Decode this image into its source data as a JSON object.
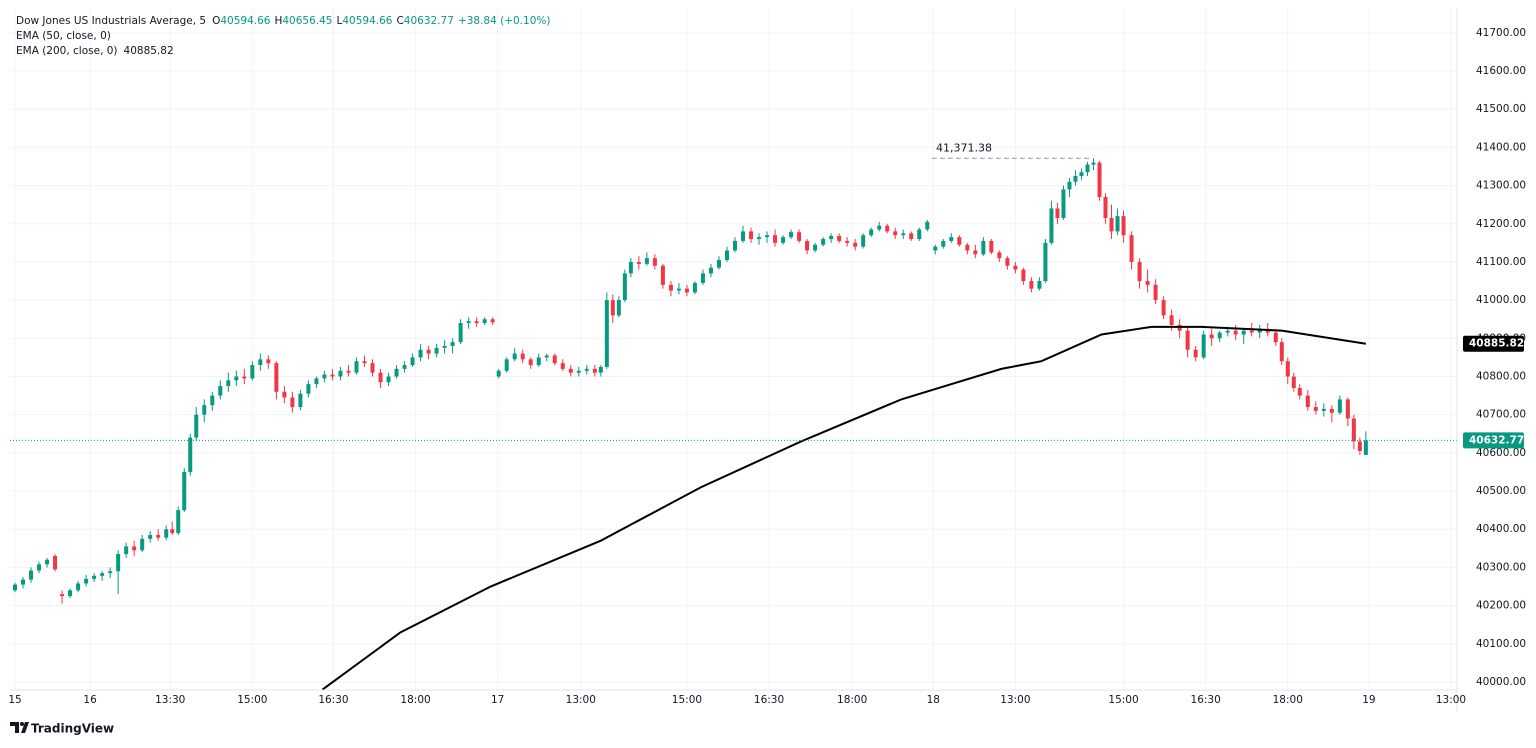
{
  "chart_data": {
    "type": "candlestick",
    "title": "Dow Jones US Industrials Average, 5",
    "ohlc_header": [
      {
        "label": "O",
        "value": "40594.66"
      },
      {
        "label": "H",
        "value": "40656.45"
      },
      {
        "label": "L",
        "value": "40594.66"
      },
      {
        "label": "C",
        "value": "40632.77"
      }
    ],
    "change": "+38.84 (+0.10%)",
    "up_color": "#089981",
    "down_color": "#f23645",
    "xlim": [
      10,
      1455
    ],
    "ylim": [
      39979,
      41765
    ],
    "xticks": [
      {
        "value": 15,
        "label": "15"
      },
      {
        "value": 90,
        "label": "16"
      },
      {
        "value": 170,
        "label": "13:30"
      },
      {
        "value": 252,
        "label": "15:00"
      },
      {
        "value": 333,
        "label": "16:30"
      },
      {
        "value": 415,
        "label": "18:00"
      },
      {
        "value": 497,
        "label": "17"
      },
      {
        "value": 580,
        "label": "13:00"
      },
      {
        "value": 686,
        "label": "15:00"
      },
      {
        "value": 768,
        "label": "16:30"
      },
      {
        "value": 851,
        "label": "18:00"
      },
      {
        "value": 932,
        "label": "18"
      },
      {
        "value": 1014,
        "label": "13:00"
      },
      {
        "value": 1122,
        "label": "15:00"
      },
      {
        "value": 1204,
        "label": "16:30"
      },
      {
        "value": 1286,
        "label": "18:00"
      },
      {
        "value": 1367,
        "label": "19"
      },
      {
        "value": 1449,
        "label": "13:00"
      }
    ],
    "yticks": [
      {
        "value": 40000,
        "label": "40000.00"
      },
      {
        "value": 40100,
        "label": "40100.00"
      },
      {
        "value": 40200,
        "label": "40200.00"
      },
      {
        "value": 40300,
        "label": "40300.00"
      },
      {
        "value": 40400,
        "label": "40400.00"
      },
      {
        "value": 40500,
        "label": "40500.00"
      },
      {
        "value": 40600,
        "label": "40600.00"
      },
      {
        "value": 40700,
        "label": "40700.00"
      },
      {
        "value": 40800,
        "label": "40800.00"
      },
      {
        "value": 40900,
        "label": "40900.00"
      },
      {
        "value": 41000,
        "label": "41000.00"
      },
      {
        "value": 41100,
        "label": "41100.00"
      },
      {
        "value": 41200,
        "label": "41200.00"
      },
      {
        "value": 41300,
        "label": "41300.00"
      },
      {
        "value": 41400,
        "label": "41400.00"
      },
      {
        "value": 41500,
        "label": "41500.00"
      },
      {
        "value": 41600,
        "label": "41600.00"
      },
      {
        "value": 41700,
        "label": "41700.00"
      }
    ],
    "grid": true,
    "candles": [
      [
        15,
        40240,
        40260,
        40235,
        40255
      ],
      [
        23,
        40255,
        40275,
        40245,
        40268
      ],
      [
        31,
        40268,
        40300,
        40260,
        40292
      ],
      [
        39,
        40292,
        40315,
        40285,
        40308
      ],
      [
        47,
        40308,
        40325,
        40300,
        40320
      ],
      [
        55,
        40330,
        40335,
        40290,
        40295
      ],
      [
        62,
        40230,
        40240,
        40205,
        40225
      ],
      [
        70,
        40225,
        40245,
        40220,
        40240
      ],
      [
        78,
        40240,
        40265,
        40235,
        40258
      ],
      [
        86,
        40258,
        40280,
        40250,
        40270
      ],
      [
        94,
        40270,
        40285,
        40262,
        40278
      ],
      [
        102,
        40278,
        40290,
        40265,
        40285
      ],
      [
        110,
        40285,
        40300,
        40272,
        40290
      ],
      [
        118,
        40290,
        40345,
        40230,
        40335
      ],
      [
        126,
        40335,
        40365,
        40325,
        40355
      ],
      [
        134,
        40355,
        40370,
        40330,
        40345
      ],
      [
        142,
        40345,
        40385,
        40340,
        40375
      ],
      [
        150,
        40375,
        40395,
        40365,
        40385
      ],
      [
        158,
        40385,
        40400,
        40370,
        40378
      ],
      [
        166,
        40378,
        40410,
        40372,
        40400
      ],
      [
        172,
        40400,
        40420,
        40385,
        40390
      ],
      [
        178,
        40390,
        40460,
        40385,
        40450
      ],
      [
        184,
        40450,
        40560,
        40445,
        40550
      ],
      [
        190,
        40550,
        40650,
        40540,
        40640
      ],
      [
        196,
        40640,
        40720,
        40630,
        40700
      ],
      [
        204,
        40700,
        40740,
        40680,
        40725
      ],
      [
        212,
        40725,
        40760,
        40710,
        40750
      ],
      [
        220,
        40750,
        40790,
        40740,
        40775
      ],
      [
        228,
        40775,
        40810,
        40760,
        40790
      ],
      [
        236,
        40790,
        40815,
        40775,
        40800
      ],
      [
        244,
        40800,
        40820,
        40780,
        40795
      ],
      [
        252,
        40795,
        40840,
        40790,
        40830
      ],
      [
        260,
        40830,
        40860,
        40815,
        40845
      ],
      [
        268,
        40845,
        40855,
        40820,
        40835
      ],
      [
        276,
        40835,
        40840,
        40740,
        40760
      ],
      [
        284,
        40760,
        40775,
        40730,
        40745
      ],
      [
        292,
        40745,
        40760,
        40705,
        40720
      ],
      [
        300,
        40720,
        40765,
        40712,
        40755
      ],
      [
        308,
        40755,
        40790,
        40745,
        40780
      ],
      [
        316,
        40780,
        40800,
        40770,
        40795
      ],
      [
        324,
        40795,
        40815,
        40785,
        40805
      ],
      [
        332,
        40805,
        40820,
        40790,
        40800
      ],
      [
        340,
        40800,
        40825,
        40790,
        40815
      ],
      [
        348,
        40815,
        40830,
        40800,
        40810
      ],
      [
        356,
        40810,
        40850,
        40805,
        40840
      ],
      [
        364,
        40840,
        40855,
        40825,
        40835
      ],
      [
        372,
        40835,
        40845,
        40800,
        40810
      ],
      [
        380,
        40810,
        40820,
        40770,
        40785
      ],
      [
        388,
        40785,
        40810,
        40775,
        40800
      ],
      [
        396,
        40800,
        40830,
        40795,
        40820
      ],
      [
        404,
        40820,
        40840,
        40810,
        40830
      ],
      [
        412,
        40830,
        40860,
        40825,
        40850
      ],
      [
        420,
        40850,
        40885,
        40840,
        40870
      ],
      [
        428,
        40870,
        40880,
        40845,
        40860
      ],
      [
        436,
        40860,
        40885,
        40850,
        40875
      ],
      [
        444,
        40875,
        40895,
        40860,
        40880
      ],
      [
        452,
        40880,
        40900,
        40860,
        40890
      ],
      [
        460,
        40890,
        40950,
        40885,
        40940
      ],
      [
        468,
        40940,
        40955,
        40925,
        40945
      ],
      [
        476,
        40945,
        40955,
        40930,
        40940
      ],
      [
        484,
        40940,
        40955,
        40935,
        40950
      ],
      [
        492,
        40950,
        40955,
        40935,
        40942
      ],
      [
        498,
        40800,
        40820,
        40795,
        40815
      ],
      [
        506,
        40815,
        40850,
        40810,
        40845
      ],
      [
        514,
        40845,
        40875,
        40840,
        40860
      ],
      [
        522,
        40860,
        40870,
        40835,
        40845
      ],
      [
        530,
        40845,
        40850,
        40820,
        40830
      ],
      [
        538,
        40830,
        40860,
        40825,
        40850
      ],
      [
        546,
        40850,
        40860,
        40840,
        40855
      ],
      [
        554,
        40855,
        40860,
        40830,
        40835
      ],
      [
        562,
        40835,
        40845,
        40815,
        40820
      ],
      [
        570,
        40820,
        40830,
        40800,
        40810
      ],
      [
        578,
        40810,
        40825,
        40800,
        40815
      ],
      [
        586,
        40815,
        40830,
        40805,
        40820
      ],
      [
        594,
        40820,
        40830,
        40800,
        40810
      ],
      [
        600,
        40810,
        40830,
        40800,
        40825
      ],
      [
        606,
        40825,
        41020,
        40820,
        41000
      ],
      [
        612,
        41000,
        41015,
        40940,
        40960
      ],
      [
        618,
        40960,
        41010,
        40955,
        41000
      ],
      [
        624,
        41000,
        41080,
        40995,
        41070
      ],
      [
        630,
        41070,
        41110,
        41060,
        41100
      ],
      [
        638,
        41100,
        41115,
        41080,
        41095
      ],
      [
        646,
        41095,
        41125,
        41090,
        41110
      ],
      [
        654,
        41110,
        41120,
        41080,
        41090
      ],
      [
        662,
        41090,
        41095,
        41030,
        41040
      ],
      [
        670,
        41040,
        41050,
        41010,
        41025
      ],
      [
        678,
        41025,
        41045,
        41015,
        41030
      ],
      [
        686,
        41030,
        41040,
        41010,
        41020
      ],
      [
        694,
        41020,
        41050,
        41015,
        41045
      ],
      [
        702,
        41045,
        41080,
        41040,
        41070
      ],
      [
        710,
        41070,
        41095,
        41060,
        41085
      ],
      [
        718,
        41085,
        41115,
        41080,
        41105
      ],
      [
        726,
        41105,
        41140,
        41100,
        41130
      ],
      [
        734,
        41130,
        41165,
        41125,
        41155
      ],
      [
        742,
        41155,
        41195,
        41150,
        41180
      ],
      [
        750,
        41180,
        41190,
        41150,
        41160
      ],
      [
        758,
        41160,
        41175,
        41145,
        41165
      ],
      [
        766,
        41165,
        41180,
        41150,
        41170
      ],
      [
        774,
        41170,
        41185,
        41140,
        41150
      ],
      [
        782,
        41150,
        41170,
        41145,
        41165
      ],
      [
        790,
        41165,
        41185,
        41160,
        41178
      ],
      [
        798,
        41178,
        41185,
        41150,
        41155
      ],
      [
        806,
        41155,
        41160,
        41120,
        41130
      ],
      [
        814,
        41130,
        41150,
        41125,
        41145
      ],
      [
        822,
        41145,
        41165,
        41140,
        41160
      ],
      [
        830,
        41160,
        41175,
        41150,
        41168
      ],
      [
        838,
        41168,
        41175,
        41150,
        41155
      ],
      [
        846,
        41155,
        41165,
        41140,
        41150
      ],
      [
        854,
        41150,
        41160,
        41130,
        41140
      ],
      [
        862,
        41140,
        41175,
        41135,
        41170
      ],
      [
        870,
        41170,
        41190,
        41165,
        41185
      ],
      [
        878,
        41185,
        41205,
        41180,
        41195
      ],
      [
        886,
        41195,
        41200,
        41175,
        41180
      ],
      [
        894,
        41180,
        41190,
        41160,
        41170
      ],
      [
        902,
        41170,
        41185,
        41160,
        41175
      ],
      [
        910,
        41175,
        41180,
        41155,
        41160
      ],
      [
        918,
        41160,
        41190,
        41155,
        41185
      ],
      [
        926,
        41185,
        41210,
        41180,
        41205
      ],
      [
        934,
        41130,
        41145,
        41120,
        41140
      ],
      [
        942,
        41140,
        41160,
        41135,
        41155
      ],
      [
        950,
        41155,
        41175,
        41150,
        41165
      ],
      [
        958,
        41165,
        41170,
        41140,
        41145
      ],
      [
        966,
        41145,
        41150,
        41120,
        41130
      ],
      [
        974,
        41130,
        41145,
        41110,
        41120
      ],
      [
        982,
        41120,
        41165,
        41115,
        41155
      ],
      [
        990,
        41155,
        41160,
        41120,
        41125
      ],
      [
        998,
        41125,
        41130,
        41100,
        41110
      ],
      [
        1006,
        41110,
        41115,
        41080,
        41090
      ],
      [
        1014,
        41090,
        41100,
        41070,
        41080
      ],
      [
        1022,
        41080,
        41085,
        41040,
        41050
      ],
      [
        1030,
        41050,
        41060,
        41020,
        41030
      ],
      [
        1038,
        41030,
        41060,
        41025,
        41050
      ],
      [
        1044,
        41050,
        41160,
        41045,
        41150
      ],
      [
        1050,
        41150,
        41260,
        41145,
        41240
      ],
      [
        1056,
        41240,
        41255,
        41200,
        41215
      ],
      [
        1062,
        41215,
        41300,
        41210,
        41290
      ],
      [
        1068,
        41290,
        41320,
        41270,
        41310
      ],
      [
        1074,
        41310,
        41340,
        41300,
        41325
      ],
      [
        1080,
        41325,
        41345,
        41315,
        41335
      ],
      [
        1086,
        41335,
        41362,
        41325,
        41355
      ],
      [
        1092,
        41355,
        41371.38,
        41340,
        41360
      ],
      [
        1098,
        41360,
        41365,
        41260,
        41270
      ],
      [
        1104,
        41270,
        41280,
        41200,
        41215
      ],
      [
        1110,
        41215,
        41250,
        41160,
        41180
      ],
      [
        1116,
        41180,
        41240,
        41170,
        41220
      ],
      [
        1122,
        41220,
        41235,
        41150,
        41170
      ],
      [
        1130,
        41170,
        41180,
        41080,
        41100
      ],
      [
        1138,
        41100,
        41110,
        41030,
        41050
      ],
      [
        1146,
        41050,
        41080,
        41020,
        41040
      ],
      [
        1154,
        41040,
        41055,
        40990,
        41000
      ],
      [
        1162,
        41000,
        41010,
        40950,
        40960
      ],
      [
        1170,
        40960,
        40975,
        40920,
        40935
      ],
      [
        1178,
        40935,
        40950,
        40900,
        40920
      ],
      [
        1186,
        40920,
        40930,
        40850,
        40870
      ],
      [
        1194,
        40870,
        40880,
        40840,
        40850
      ],
      [
        1202,
        40850,
        40920,
        40845,
        40910
      ],
      [
        1210,
        40910,
        40925,
        40880,
        40900
      ],
      [
        1218,
        40900,
        40920,
        40890,
        40915
      ],
      [
        1226,
        40915,
        40930,
        40905,
        40920
      ],
      [
        1234,
        40920,
        40935,
        40895,
        40910
      ],
      [
        1242,
        40910,
        40925,
        40885,
        40920
      ],
      [
        1250,
        40920,
        40940,
        40905,
        40915
      ],
      [
        1258,
        40915,
        40935,
        40900,
        40925
      ],
      [
        1266,
        40925,
        40940,
        40905,
        40915
      ],
      [
        1274,
        40915,
        40925,
        40880,
        40890
      ],
      [
        1280,
        40890,
        40900,
        40830,
        40840
      ],
      [
        1286,
        40840,
        40850,
        40780,
        40800
      ],
      [
        1292,
        40800,
        40810,
        40760,
        40770
      ],
      [
        1298,
        40770,
        40780,
        40740,
        40750
      ],
      [
        1306,
        40750,
        40765,
        40710,
        40720
      ],
      [
        1314,
        40720,
        40735,
        40700,
        40710
      ],
      [
        1322,
        40710,
        40730,
        40695,
        40715
      ],
      [
        1330,
        40715,
        40725,
        40680,
        40705
      ],
      [
        1338,
        40705,
        40750,
        40700,
        40740
      ],
      [
        1346,
        40740,
        40745,
        40670,
        40690
      ],
      [
        1352,
        40690,
        40700,
        40610,
        40630
      ],
      [
        1358,
        40630,
        40640,
        40594.66,
        40605
      ],
      [
        1364,
        40594.66,
        40656.45,
        40594.66,
        40632.77
      ]
    ],
    "series": [
      {
        "name": "EMA (50, close, 0)"
      },
      {
        "name": "EMA (200, close, 0)",
        "color": "#000000",
        "value_label": "40885.82",
        "x": [
          322,
          400,
          490,
          600,
          700,
          800,
          900,
          1000,
          1040,
          1100,
          1150,
          1200,
          1280,
          1364
        ],
        "values": [
          39980,
          40130,
          40250,
          40370,
          40510,
          40630,
          40740,
          40820,
          40840,
          40910,
          40930,
          40930,
          40920,
          40885.82
        ]
      }
    ],
    "last_price_label": "40632.77",
    "annotations": [
      {
        "text": "41,371.38",
        "value": 41371.38
      }
    ],
    "watermark": "TradingView"
  }
}
